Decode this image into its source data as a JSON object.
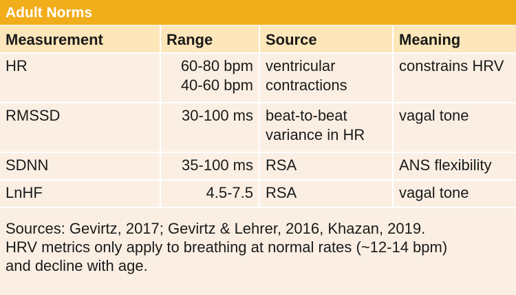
{
  "title": "Adult Norms",
  "table": {
    "headers": [
      "Measurement",
      "Range",
      "Source",
      "Meaning"
    ],
    "rows": [
      {
        "measurement": "HR",
        "range": [
          "60-80 bpm",
          "40-60 bpm"
        ],
        "source": [
          "ventricular",
          "contractions"
        ],
        "meaning": "constrains HRV"
      },
      {
        "measurement": "RMSSD",
        "range": [
          "30-100 ms"
        ],
        "source": [
          "beat-to-beat",
          "variance in HR"
        ],
        "meaning": "vagal tone"
      },
      {
        "measurement": "SDNN",
        "range": [
          "35-100 ms"
        ],
        "source": [
          "RSA"
        ],
        "meaning": "ANS flexibility"
      },
      {
        "measurement": "LnHF",
        "range": [
          "4.5-7.5"
        ],
        "source": [
          "RSA"
        ],
        "meaning": "vagal tone"
      }
    ]
  },
  "footnote": [
    "Sources: Gevirtz, 2017; Gevirtz & Lehrer, 2016, Khazan, 2019.",
    "HRV metrics only apply to breathing at normal rates (~12-14 bpm)",
    "and decline with age."
  ],
  "colors": {
    "title_bar": "#f2ad1a",
    "header_row": "#fde6b9",
    "body": "#fbefe3"
  }
}
